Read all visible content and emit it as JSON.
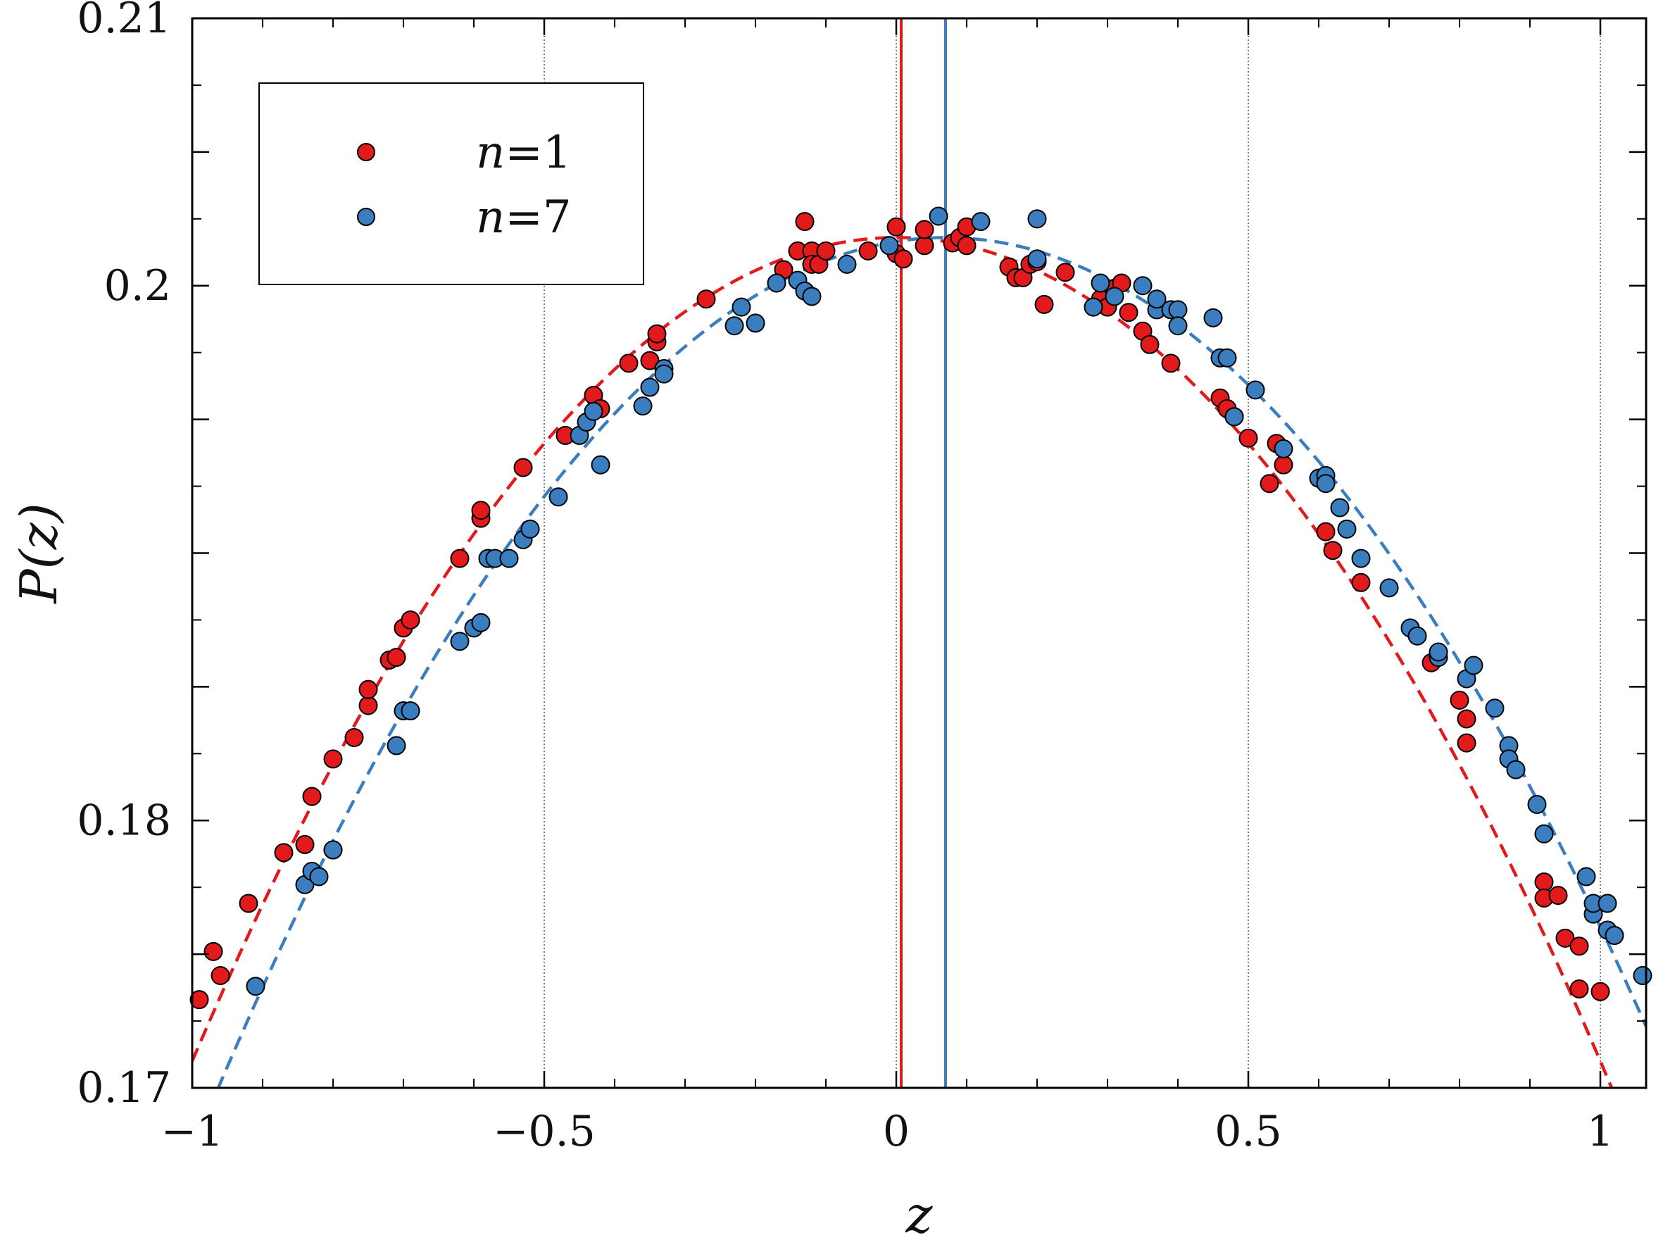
{
  "chart_data": {
    "type": "scatter",
    "xlabel": "z",
    "ylabel": "P(z)",
    "xlim": [
      -1,
      1.065
    ],
    "ylim": [
      0.17,
      0.21
    ],
    "xticks": [
      -1,
      -0.5,
      0,
      0.5,
      1
    ],
    "xtick_labels": [
      "−1",
      "−0.5",
      "0",
      "0.5",
      "1"
    ],
    "yticks": [
      0.17,
      0.18,
      0.2,
      0.21
    ],
    "ytick_labels": [
      "0.17",
      "0.18",
      "0.2",
      "0.21"
    ],
    "y_minor_ticks": [
      0.175,
      0.185,
      0.19,
      0.195,
      0.205
    ],
    "vertical_gridlines_dotted": [
      -0.5,
      0,
      0.5,
      1
    ],
    "legend_position": "upper-left",
    "series": [
      {
        "name_var": "n",
        "name_eq": "=1",
        "color": "#e31a1c",
        "mean_line_x": 0.007,
        "fit_curve": {
          "style": "dashed",
          "form": "quadratic",
          "peak_x": 0.0,
          "peak_y": 0.2018,
          "curvature": 0.0308
        },
        "points": [
          [
            -0.99,
            0.1733
          ],
          [
            -0.97,
            0.1751
          ],
          [
            -0.96,
            0.1742
          ],
          [
            -0.92,
            0.1769
          ],
          [
            -0.87,
            0.1788
          ],
          [
            -0.84,
            0.1791
          ],
          [
            -0.83,
            0.1809
          ],
          [
            -0.8,
            0.1823
          ],
          [
            -0.77,
            0.1831
          ],
          [
            -0.75,
            0.1843
          ],
          [
            -0.75,
            0.1849
          ],
          [
            -0.72,
            0.186
          ],
          [
            -0.71,
            0.1861
          ],
          [
            -0.7,
            0.1872
          ],
          [
            -0.69,
            0.1875
          ],
          [
            -0.62,
            0.1898
          ],
          [
            -0.59,
            0.1913
          ],
          [
            -0.59,
            0.1916
          ],
          [
            -0.53,
            0.1932
          ],
          [
            -0.47,
            0.1944
          ],
          [
            -0.43,
            0.1959
          ],
          [
            -0.42,
            0.1954
          ],
          [
            -0.38,
            0.1971
          ],
          [
            -0.35,
            0.1972
          ],
          [
            -0.34,
            0.1979
          ],
          [
            -0.34,
            0.1982
          ],
          [
            -0.27,
            0.1995
          ],
          [
            -0.16,
            0.2006
          ],
          [
            -0.14,
            0.2013
          ],
          [
            -0.13,
            0.2024
          ],
          [
            -0.12,
            0.2013
          ],
          [
            -0.12,
            0.2008
          ],
          [
            -0.11,
            0.2008
          ],
          [
            -0.1,
            0.2013
          ],
          [
            -0.04,
            0.2013
          ],
          [
            0.0,
            0.2022
          ],
          [
            0.0,
            0.2012
          ],
          [
            0.01,
            0.201
          ],
          [
            0.04,
            0.2015
          ],
          [
            0.04,
            0.2021
          ],
          [
            0.08,
            0.2016
          ],
          [
            0.09,
            0.2018
          ],
          [
            0.1,
            0.2022
          ],
          [
            0.1,
            0.2015
          ],
          [
            0.16,
            0.2007
          ],
          [
            0.17,
            0.2003
          ],
          [
            0.18,
            0.2003
          ],
          [
            0.19,
            0.2008
          ],
          [
            0.2,
            0.2009
          ],
          [
            0.21,
            0.1993
          ],
          [
            0.24,
            0.2005
          ],
          [
            0.29,
            0.1995
          ],
          [
            0.3,
            0.1992
          ],
          [
            0.31,
            0.1999
          ],
          [
            0.32,
            0.2001
          ],
          [
            0.33,
            0.199
          ],
          [
            0.35,
            0.1983
          ],
          [
            0.36,
            0.1978
          ],
          [
            0.39,
            0.1971
          ],
          [
            0.46,
            0.1958
          ],
          [
            0.47,
            0.1954
          ],
          [
            0.5,
            0.1943
          ],
          [
            0.53,
            0.1926
          ],
          [
            0.54,
            0.1941
          ],
          [
            0.55,
            0.1933
          ],
          [
            0.61,
            0.1908
          ],
          [
            0.62,
            0.1901
          ],
          [
            0.66,
            0.1889
          ],
          [
            0.76,
            0.1859
          ],
          [
            0.8,
            0.1845
          ],
          [
            0.81,
            0.1838
          ],
          [
            0.81,
            0.1829
          ],
          [
            0.92,
            0.1777
          ],
          [
            0.92,
            0.1771
          ],
          [
            0.94,
            0.1772
          ],
          [
            0.95,
            0.1756
          ],
          [
            0.97,
            0.1753
          ],
          [
            0.97,
            0.1737
          ],
          [
            1.0,
            0.1736
          ]
        ]
      },
      {
        "name_var": "n",
        "name_eq": "=7",
        "color": "#3a7ebf",
        "mean_line_x": 0.07,
        "fit_curve": {
          "style": "dashed",
          "form": "quadratic",
          "peak_x": 0.07,
          "peak_y": 0.2018,
          "curvature": 0.0298
        },
        "points": [
          [
            -0.91,
            0.1738
          ],
          [
            -0.84,
            0.1776
          ],
          [
            -0.83,
            0.1781
          ],
          [
            -0.82,
            0.1779
          ],
          [
            -0.8,
            0.1789
          ],
          [
            -0.8,
            0.1789
          ],
          [
            -0.71,
            0.1828
          ],
          [
            -0.7,
            0.1841
          ],
          [
            -0.69,
            0.1841
          ],
          [
            -0.62,
            0.1867
          ],
          [
            -0.6,
            0.1872
          ],
          [
            -0.59,
            0.1874
          ],
          [
            -0.58,
            0.1898
          ],
          [
            -0.57,
            0.1898
          ],
          [
            -0.55,
            0.1898
          ],
          [
            -0.53,
            0.1905
          ],
          [
            -0.52,
            0.1909
          ],
          [
            -0.48,
            0.1921
          ],
          [
            -0.45,
            0.1944
          ],
          [
            -0.44,
            0.1949
          ],
          [
            -0.43,
            0.1953
          ],
          [
            -0.42,
            0.1933
          ],
          [
            -0.36,
            0.1955
          ],
          [
            -0.35,
            0.1962
          ],
          [
            -0.33,
            0.1969
          ],
          [
            -0.33,
            0.1967
          ],
          [
            -0.23,
            0.1985
          ],
          [
            -0.22,
            0.1992
          ],
          [
            -0.2,
            0.1986
          ],
          [
            -0.17,
            0.2001
          ],
          [
            -0.14,
            0.2002
          ],
          [
            -0.13,
            0.1998
          ],
          [
            -0.12,
            0.1996
          ],
          [
            -0.07,
            0.2008
          ],
          [
            -0.01,
            0.2015
          ],
          [
            0.06,
            0.2026
          ],
          [
            0.12,
            0.2024
          ],
          [
            0.2,
            0.2025
          ],
          [
            0.2,
            0.201
          ],
          [
            0.28,
            0.1992
          ],
          [
            0.29,
            0.2001
          ],
          [
            0.31,
            0.1996
          ],
          [
            0.35,
            0.2
          ],
          [
            0.37,
            0.1991
          ],
          [
            0.37,
            0.1995
          ],
          [
            0.39,
            0.1991
          ],
          [
            0.4,
            0.1991
          ],
          [
            0.4,
            0.1985
          ],
          [
            0.45,
            0.1988
          ],
          [
            0.46,
            0.1973
          ],
          [
            0.47,
            0.1973
          ],
          [
            0.48,
            0.1951
          ],
          [
            0.48,
            0.1951
          ],
          [
            0.51,
            0.1961
          ],
          [
            0.55,
            0.1939
          ],
          [
            0.6,
            0.1928
          ],
          [
            0.61,
            0.1929
          ],
          [
            0.61,
            0.1926
          ],
          [
            0.63,
            0.1917
          ],
          [
            0.64,
            0.1909
          ],
          [
            0.66,
            0.1898
          ],
          [
            0.7,
            0.1887
          ],
          [
            0.73,
            0.1872
          ],
          [
            0.74,
            0.1869
          ],
          [
            0.77,
            0.1861
          ],
          [
            0.77,
            0.1863
          ],
          [
            0.81,
            0.1853
          ],
          [
            0.82,
            0.1858
          ],
          [
            0.85,
            0.1842
          ],
          [
            0.87,
            0.1828
          ],
          [
            0.87,
            0.1823
          ],
          [
            0.88,
            0.1819
          ],
          [
            0.91,
            0.1806
          ],
          [
            0.92,
            0.1795
          ],
          [
            0.98,
            0.1779
          ],
          [
            0.99,
            0.1765
          ],
          [
            0.99,
            0.1769
          ],
          [
            1.01,
            0.1759
          ],
          [
            1.01,
            0.1769
          ],
          [
            1.02,
            0.1757
          ],
          [
            1.06,
            0.1742
          ]
        ]
      }
    ]
  }
}
